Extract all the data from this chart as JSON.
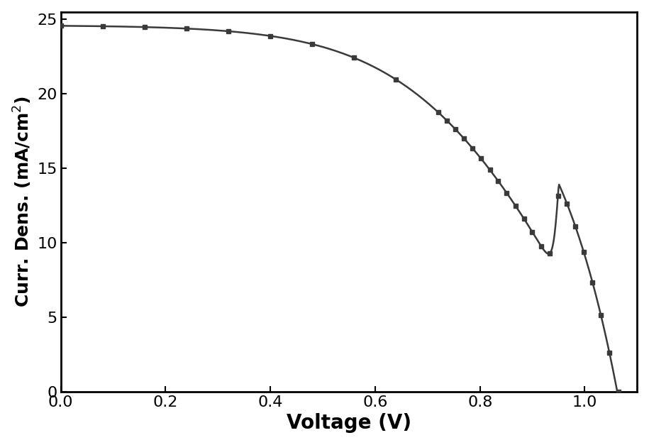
{
  "title": "",
  "xlabel": "Voltage (V)",
  "ylabel": "Curr. Dens. (mA/cm$^2$)",
  "xlim": [
    0.0,
    1.1
  ],
  "ylim": [
    0.0,
    25.5
  ],
  "yticks": [
    0,
    5,
    10,
    15,
    20,
    25
  ],
  "xticks": [
    0.0,
    0.2,
    0.4,
    0.6,
    0.8,
    1.0
  ],
  "line_color": "#3a3a3a",
  "marker": "s",
  "markersize": 5,
  "linewidth": 1.8,
  "Jsc": 24.6,
  "Voc": 1.062,
  "n_factor": 7.5,
  "Rs": 0.008,
  "background_color": "#ffffff",
  "xlabel_fontsize": 20,
  "ylabel_fontsize": 18,
  "tick_fontsize": 16,
  "n_markers_flat": 10,
  "n_markers_steep": 22
}
